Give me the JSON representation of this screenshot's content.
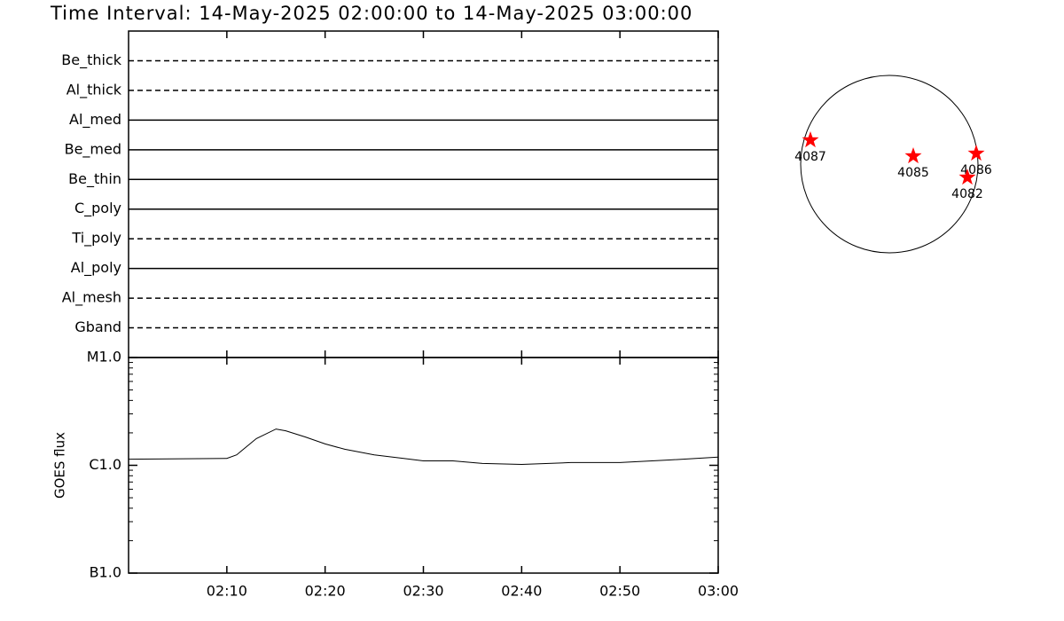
{
  "chart_data": [
    {
      "type": "timeline",
      "title": "Time Interval: 14-May-2025 02:00:00 to 14-May-2025 03:00:00",
      "xlim": [
        "02:00",
        "03:00"
      ],
      "xticks": [
        "02:10",
        "02:20",
        "02:30",
        "02:40",
        "02:50",
        "03:00"
      ],
      "color": "#000000",
      "series": [
        {
          "name": "Be_thick",
          "linestyle": "dashed",
          "x": [
            "02:00",
            "03:00"
          ]
        },
        {
          "name": "Al_thick",
          "linestyle": "dashed",
          "x": [
            "02:00",
            "03:00"
          ]
        },
        {
          "name": "Al_med",
          "linestyle": "solid",
          "x": [
            "02:00",
            "03:00"
          ]
        },
        {
          "name": "Be_med",
          "linestyle": "solid",
          "x": [
            "02:00",
            "03:00"
          ]
        },
        {
          "name": "Be_thin",
          "linestyle": "solid",
          "x": [
            "02:00",
            "03:00"
          ]
        },
        {
          "name": "C_poly",
          "linestyle": "solid",
          "x": [
            "02:00",
            "03:00"
          ]
        },
        {
          "name": "Ti_poly",
          "linestyle": "dashed",
          "x": [
            "02:00",
            "03:00"
          ]
        },
        {
          "name": "Al_poly",
          "linestyle": "solid",
          "x": [
            "02:00",
            "03:00"
          ]
        },
        {
          "name": "Al_mesh",
          "linestyle": "dashed",
          "x": [
            "02:00",
            "03:00"
          ]
        },
        {
          "name": "Gband",
          "linestyle": "dashed",
          "x": [
            "02:00",
            "03:00"
          ]
        }
      ]
    },
    {
      "type": "line",
      "ylabel": "GOES flux",
      "log_y": true,
      "color": "#000000",
      "xlim": [
        "02:00",
        "03:00"
      ],
      "xticks": [
        "02:10",
        "02:20",
        "02:30",
        "02:40",
        "02:50",
        "03:00"
      ],
      "ylim": [
        1e-07,
        1e-05
      ],
      "yticks": [
        {
          "value": 1e-07,
          "label": "B1.0"
        },
        {
          "value": 1e-06,
          "label": "C1.0"
        },
        {
          "value": 1e-05,
          "label": "M1.0"
        }
      ],
      "minor_yticks": [
        2e-07,
        3e-07,
        4e-07,
        5e-07,
        6e-07,
        7e-07,
        8e-07,
        9e-07,
        2e-06,
        3e-06,
        4e-06,
        5e-06,
        6e-06,
        7e-06,
        8e-06,
        9e-06
      ],
      "x": [
        "02:00",
        "02:10",
        "02:11",
        "02:13",
        "02:15",
        "02:16",
        "02:18",
        "02:20",
        "02:22",
        "02:25",
        "02:28",
        "02:30",
        "02:33",
        "02:36",
        "02:40",
        "02:45",
        "02:50",
        "02:55",
        "03:00"
      ],
      "values": [
        1.14e-06,
        1.16e-06,
        1.25e-06,
        1.77e-06,
        2.17e-06,
        2.09e-06,
        1.83e-06,
        1.58e-06,
        1.41e-06,
        1.25e-06,
        1.16e-06,
        1.1e-06,
        1.1e-06,
        1.04e-06,
        1.02e-06,
        1.06e-06,
        1.06e-06,
        1.12e-06,
        1.19e-06
      ]
    },
    {
      "type": "scatter",
      "marker": "star",
      "color": "#ff0000",
      "xlim": [
        -1,
        1
      ],
      "ylim": [
        -1,
        1
      ],
      "labels": [
        "4087",
        "4085",
        "4086",
        "4082"
      ],
      "x": [
        -0.89,
        0.27,
        0.98,
        0.88
      ],
      "values": [
        0.27,
        0.09,
        0.12,
        -0.15
      ]
    }
  ]
}
